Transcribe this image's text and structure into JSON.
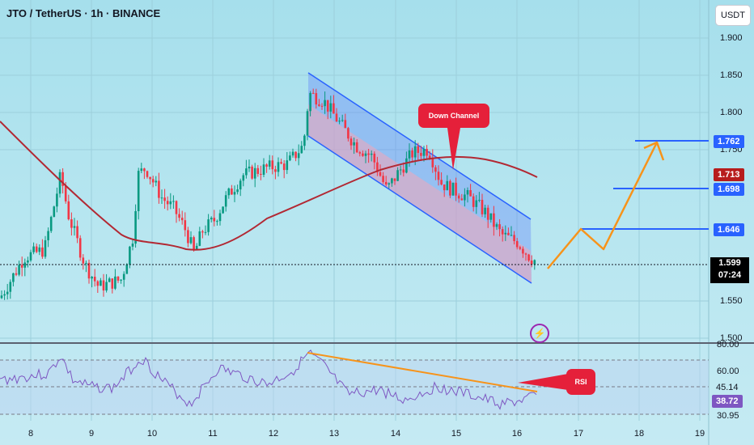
{
  "header": {
    "title": "JTO / TetherUS · 1h · BINANCE",
    "unit": "USDT"
  },
  "price_axis": {
    "ticks": [
      "1.900",
      "1.850",
      "1.800",
      "1.750",
      "1.550",
      "1.500"
    ]
  },
  "rsi_axis": {
    "ticks": [
      "80.00",
      "60.00",
      "30.95"
    ],
    "current": "38.72",
    "level": "45.14"
  },
  "time_axis": {
    "ticks": [
      "8",
      "9",
      "10",
      "11",
      "12",
      "13",
      "14",
      "15",
      "16",
      "17",
      "18",
      "19"
    ]
  },
  "levels": [
    {
      "value": "1.762",
      "color": "#2962ff"
    },
    {
      "value": "1.713",
      "color": "#b71c1c"
    },
    {
      "value": "1.698",
      "color": "#2962ff"
    },
    {
      "value": "1.646",
      "color": "#2962ff"
    }
  ],
  "current_price": {
    "value": "1.599",
    "countdown": "07:24"
  },
  "annotations": {
    "channel": "Down Channel",
    "rsi": "RSI"
  },
  "colors": {
    "up": "#089981",
    "down": "#f23645",
    "ma": "#b22833",
    "orange": "#f7931a",
    "rsi": "#7e57c2"
  }
}
